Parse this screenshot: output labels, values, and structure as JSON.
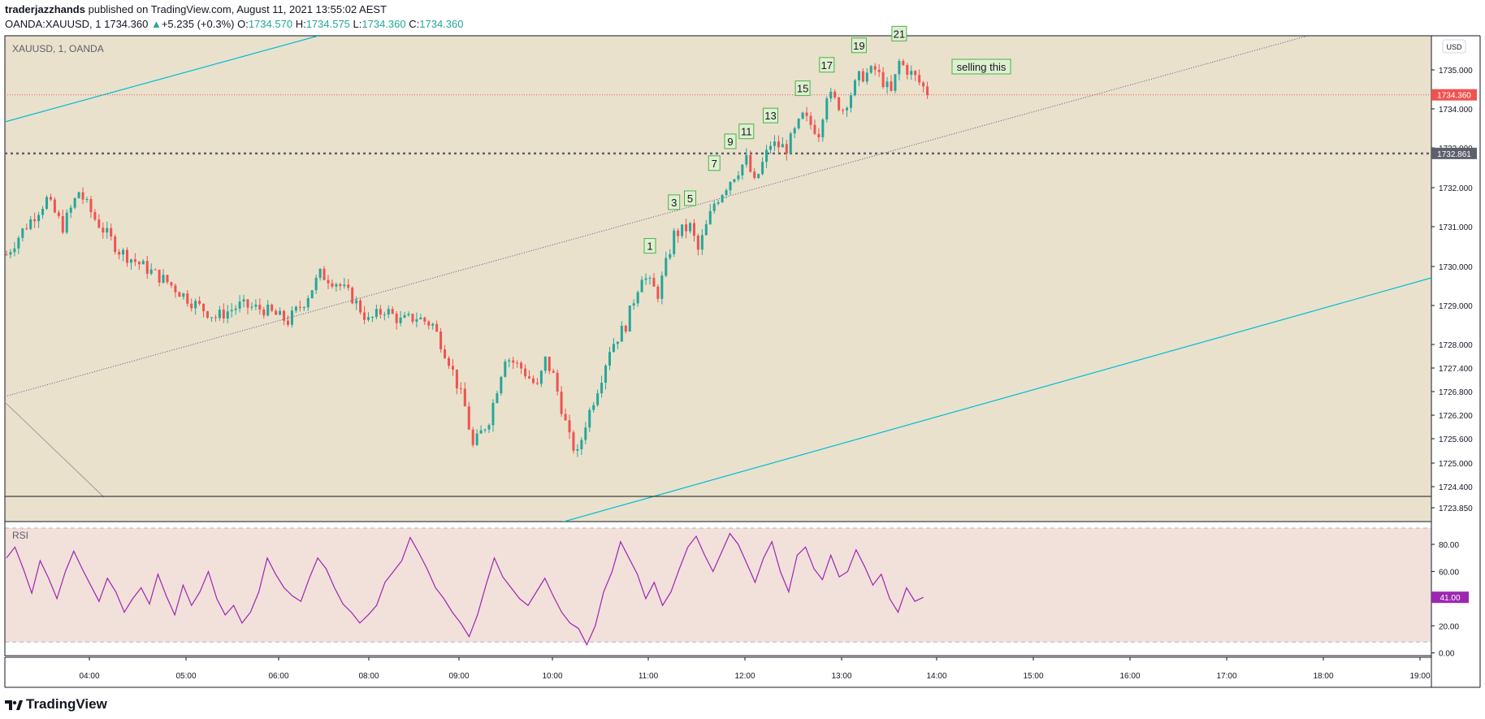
{
  "header": {
    "author": "traderjazzhands",
    "published": "published on TradingView.com, August 11, 2021 13:55:02 AEST",
    "symbol": "OANDA:XAUUSD, 1",
    "price": "1734.360",
    "change_arrow": "▲",
    "change": "+5.235 (+0.3%)",
    "o_label": "O:",
    "o": "1734.570",
    "h_label": "H:",
    "h": "1734.575",
    "l_label": "L:",
    "l": "1734.360",
    "c_label": "C:",
    "c": "1734.360"
  },
  "brand": "TradingView",
  "colors": {
    "main_bg": "#e9e1cc",
    "rsi_bg": "#f2e0db",
    "up": "#26a69a",
    "down": "#ef5350",
    "channel": "#00bcd4",
    "rsi_line": "#9c27b0",
    "price_tag": "#ef5350",
    "level_tag": "#5d606b",
    "label_box": "#dff0d0",
    "label_border": "#4caf50"
  },
  "chart_data": {
    "type": "candlestick",
    "title": "XAUUSD, 1, OANDA",
    "currency": "USD",
    "y_ticks": [
      "1735.000",
      "1734.000",
      "1733.000",
      "1732.000",
      "1731.000",
      "1730.000",
      "1729.000",
      "1728.000",
      "1727.400",
      "1726.800",
      "1726.200",
      "1725.600",
      "1725.000",
      "1724.400",
      "1723.850"
    ],
    "ylim": [
      1723.65,
      1736.0
    ],
    "x_ticks": [
      "04:00",
      "05:00",
      "06:00",
      "08:00",
      "09:00",
      "10:00",
      "11:00",
      "12:00",
      "13:00",
      "14:00",
      "15:00",
      "16:00",
      "17:00",
      "18:00",
      "19:00"
    ],
    "current_price": {
      "value": 1734.36,
      "label": "1734.360"
    },
    "level": {
      "value": 1732.86,
      "label": "1732.861"
    },
    "wave_labels": [
      "1",
      "3",
      "5",
      "7",
      "9",
      "11",
      "13",
      "15",
      "17",
      "19",
      "21"
    ],
    "annotation": "selling this",
    "price_path": [
      [
        0,
        1730.3
      ],
      [
        4,
        1730.9
      ],
      [
        10,
        1731.7
      ],
      [
        14,
        1731.0
      ],
      [
        18,
        1731.9
      ],
      [
        22,
        1731.2
      ],
      [
        28,
        1730.4
      ],
      [
        34,
        1730.0
      ],
      [
        40,
        1729.6
      ],
      [
        46,
        1729.1
      ],
      [
        52,
        1728.7
      ],
      [
        58,
        1729.0
      ],
      [
        64,
        1728.9
      ],
      [
        70,
        1728.6
      ],
      [
        74,
        1729.1
      ],
      [
        78,
        1729.8
      ],
      [
        82,
        1729.6
      ],
      [
        86,
        1729.2
      ],
      [
        90,
        1728.6
      ],
      [
        94,
        1728.9
      ],
      [
        98,
        1728.6
      ],
      [
        102,
        1728.7
      ],
      [
        106,
        1728.5
      ],
      [
        110,
        1727.6
      ],
      [
        114,
        1726.4
      ],
      [
        116,
        1725.4
      ],
      [
        120,
        1726.1
      ],
      [
        124,
        1727.7
      ],
      [
        128,
        1727.4
      ],
      [
        132,
        1726.9
      ],
      [
        134,
        1727.6
      ],
      [
        136,
        1727.2
      ],
      [
        140,
        1725.6
      ],
      [
        142,
        1725.2
      ],
      [
        144,
        1726.0
      ],
      [
        148,
        1727.2
      ],
      [
        150,
        1727.9
      ],
      [
        154,
        1728.5
      ],
      [
        158,
        1729.8
      ],
      [
        162,
        1729.3
      ],
      [
        166,
        1730.8
      ],
      [
        170,
        1731.0
      ],
      [
        172,
        1730.4
      ],
      [
        176,
        1731.6
      ],
      [
        180,
        1732.2
      ],
      [
        184,
        1732.7
      ],
      [
        186,
        1732.1
      ],
      [
        190,
        1733.1
      ],
      [
        194,
        1733.0
      ],
      [
        198,
        1733.8
      ],
      [
        202,
        1733.4
      ],
      [
        204,
        1734.4
      ],
      [
        208,
        1734.0
      ],
      [
        212,
        1734.8
      ],
      [
        216,
        1735.0
      ],
      [
        220,
        1734.4
      ],
      [
        222,
        1735.2
      ],
      [
        226,
        1734.8
      ],
      [
        230,
        1734.3
      ]
    ],
    "rsi": {
      "label": "RSI",
      "ticks": [
        "80.00",
        "60.00",
        "40.00",
        "20.00",
        "0.00"
      ],
      "ylim": [
        -2,
        95
      ],
      "current": "41.00",
      "values": [
        70,
        78,
        62,
        44,
        68,
        55,
        40,
        60,
        75,
        62,
        50,
        38,
        55,
        45,
        30,
        40,
        48,
        36,
        58,
        42,
        28,
        50,
        35,
        45,
        60,
        40,
        28,
        35,
        22,
        30,
        45,
        70,
        58,
        48,
        42,
        38,
        55,
        70,
        62,
        48,
        36,
        30,
        22,
        28,
        35,
        52,
        60,
        68,
        85,
        74,
        62,
        48,
        40,
        30,
        22,
        12,
        28,
        50,
        70,
        56,
        48,
        40,
        35,
        45,
        55,
        42,
        30,
        22,
        18,
        6,
        20,
        45,
        60,
        82,
        70,
        58,
        40,
        52,
        35,
        45,
        62,
        78,
        86,
        72,
        60,
        74,
        88,
        80,
        66,
        52,
        70,
        82,
        60,
        45,
        72,
        78,
        62,
        54,
        72,
        56,
        60,
        76,
        64,
        50,
        58,
        40,
        30,
        48,
        38,
        41
      ]
    }
  }
}
